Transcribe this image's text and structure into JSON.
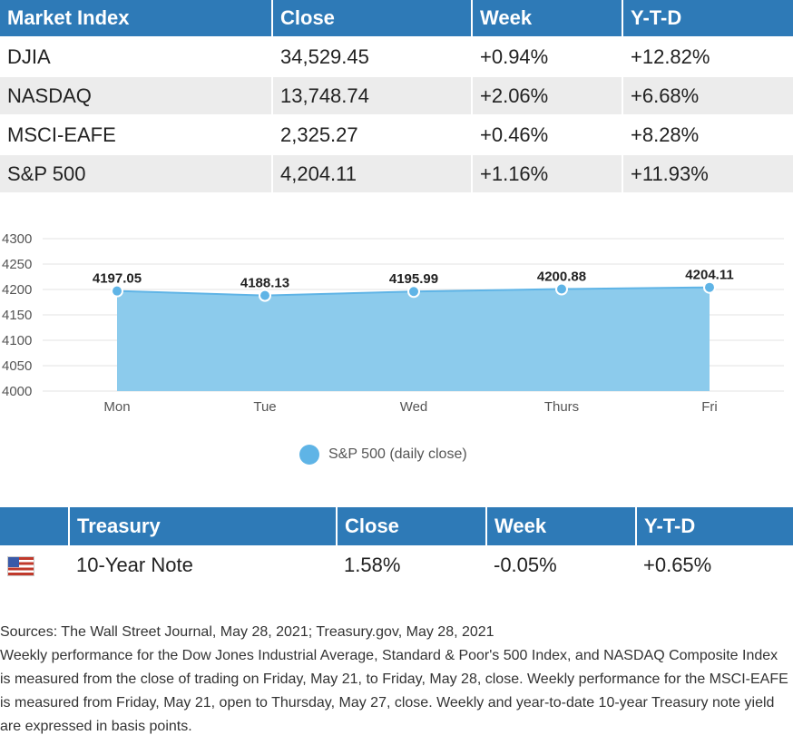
{
  "market_table": {
    "headers": [
      "Market Index",
      "Close",
      "Week",
      "Y-T-D"
    ],
    "rows": [
      [
        "DJIA",
        "34,529.45",
        "+0.94%",
        "+12.82%"
      ],
      [
        "NASDAQ",
        "13,748.74",
        "+2.06%",
        "+6.68%"
      ],
      [
        "MSCI-EAFE",
        "2,325.27",
        "+0.46%",
        "+8.28%"
      ],
      [
        "S&P 500",
        "4,204.11",
        "+1.16%",
        "+11.93%"
      ]
    ]
  },
  "chart_data": {
    "type": "area",
    "categories": [
      "Mon",
      "Tue",
      "Wed",
      "Thurs",
      "Fri"
    ],
    "series": [
      {
        "name": "S&P 500 (daily close)",
        "values": [
          4197.05,
          4188.13,
          4195.99,
          4200.88,
          4204.11
        ]
      }
    ],
    "data_labels": [
      "4197.05",
      "4188.13",
      "4195.99",
      "4200.88",
      "4204.11"
    ],
    "y_ticks": [
      "4300",
      "4250",
      "4200",
      "4150",
      "4100",
      "4050",
      "4000"
    ],
    "ylim": [
      4000,
      4300
    ],
    "legend_position": "bottom",
    "grid": true,
    "fill_color": "#8ccbec",
    "line_color": "#5fb4e6"
  },
  "legend": {
    "label": "S&P 500 (daily close)"
  },
  "treasury_table": {
    "headers": [
      "",
      "Treasury",
      "Close",
      "Week",
      "Y-T-D"
    ],
    "row": {
      "flag_icon": "us-flag-icon",
      "name": "10-Year Note",
      "close": "1.58%",
      "week": "-0.05%",
      "ytd": "+0.65%"
    }
  },
  "sources": {
    "line1": "Sources: The Wall Street Journal, May 28, 2021; Treasury.gov, May 28, 2021",
    "line2": "Weekly performance for the Dow Jones Industrial Average, Standard & Poor's 500 Index, and NASDAQ Composite Index is measured from the close of trading on Friday, May 21, to Friday, May 28, close. Weekly performance for the MSCI-EAFE is measured from Friday, May 21, open to Thursday, May 27, close. Weekly and year-to-date 10-year Treasury note yield are expressed in basis points."
  },
  "colors": {
    "header": "#2e7ab7",
    "row_shade": "#ececec"
  }
}
